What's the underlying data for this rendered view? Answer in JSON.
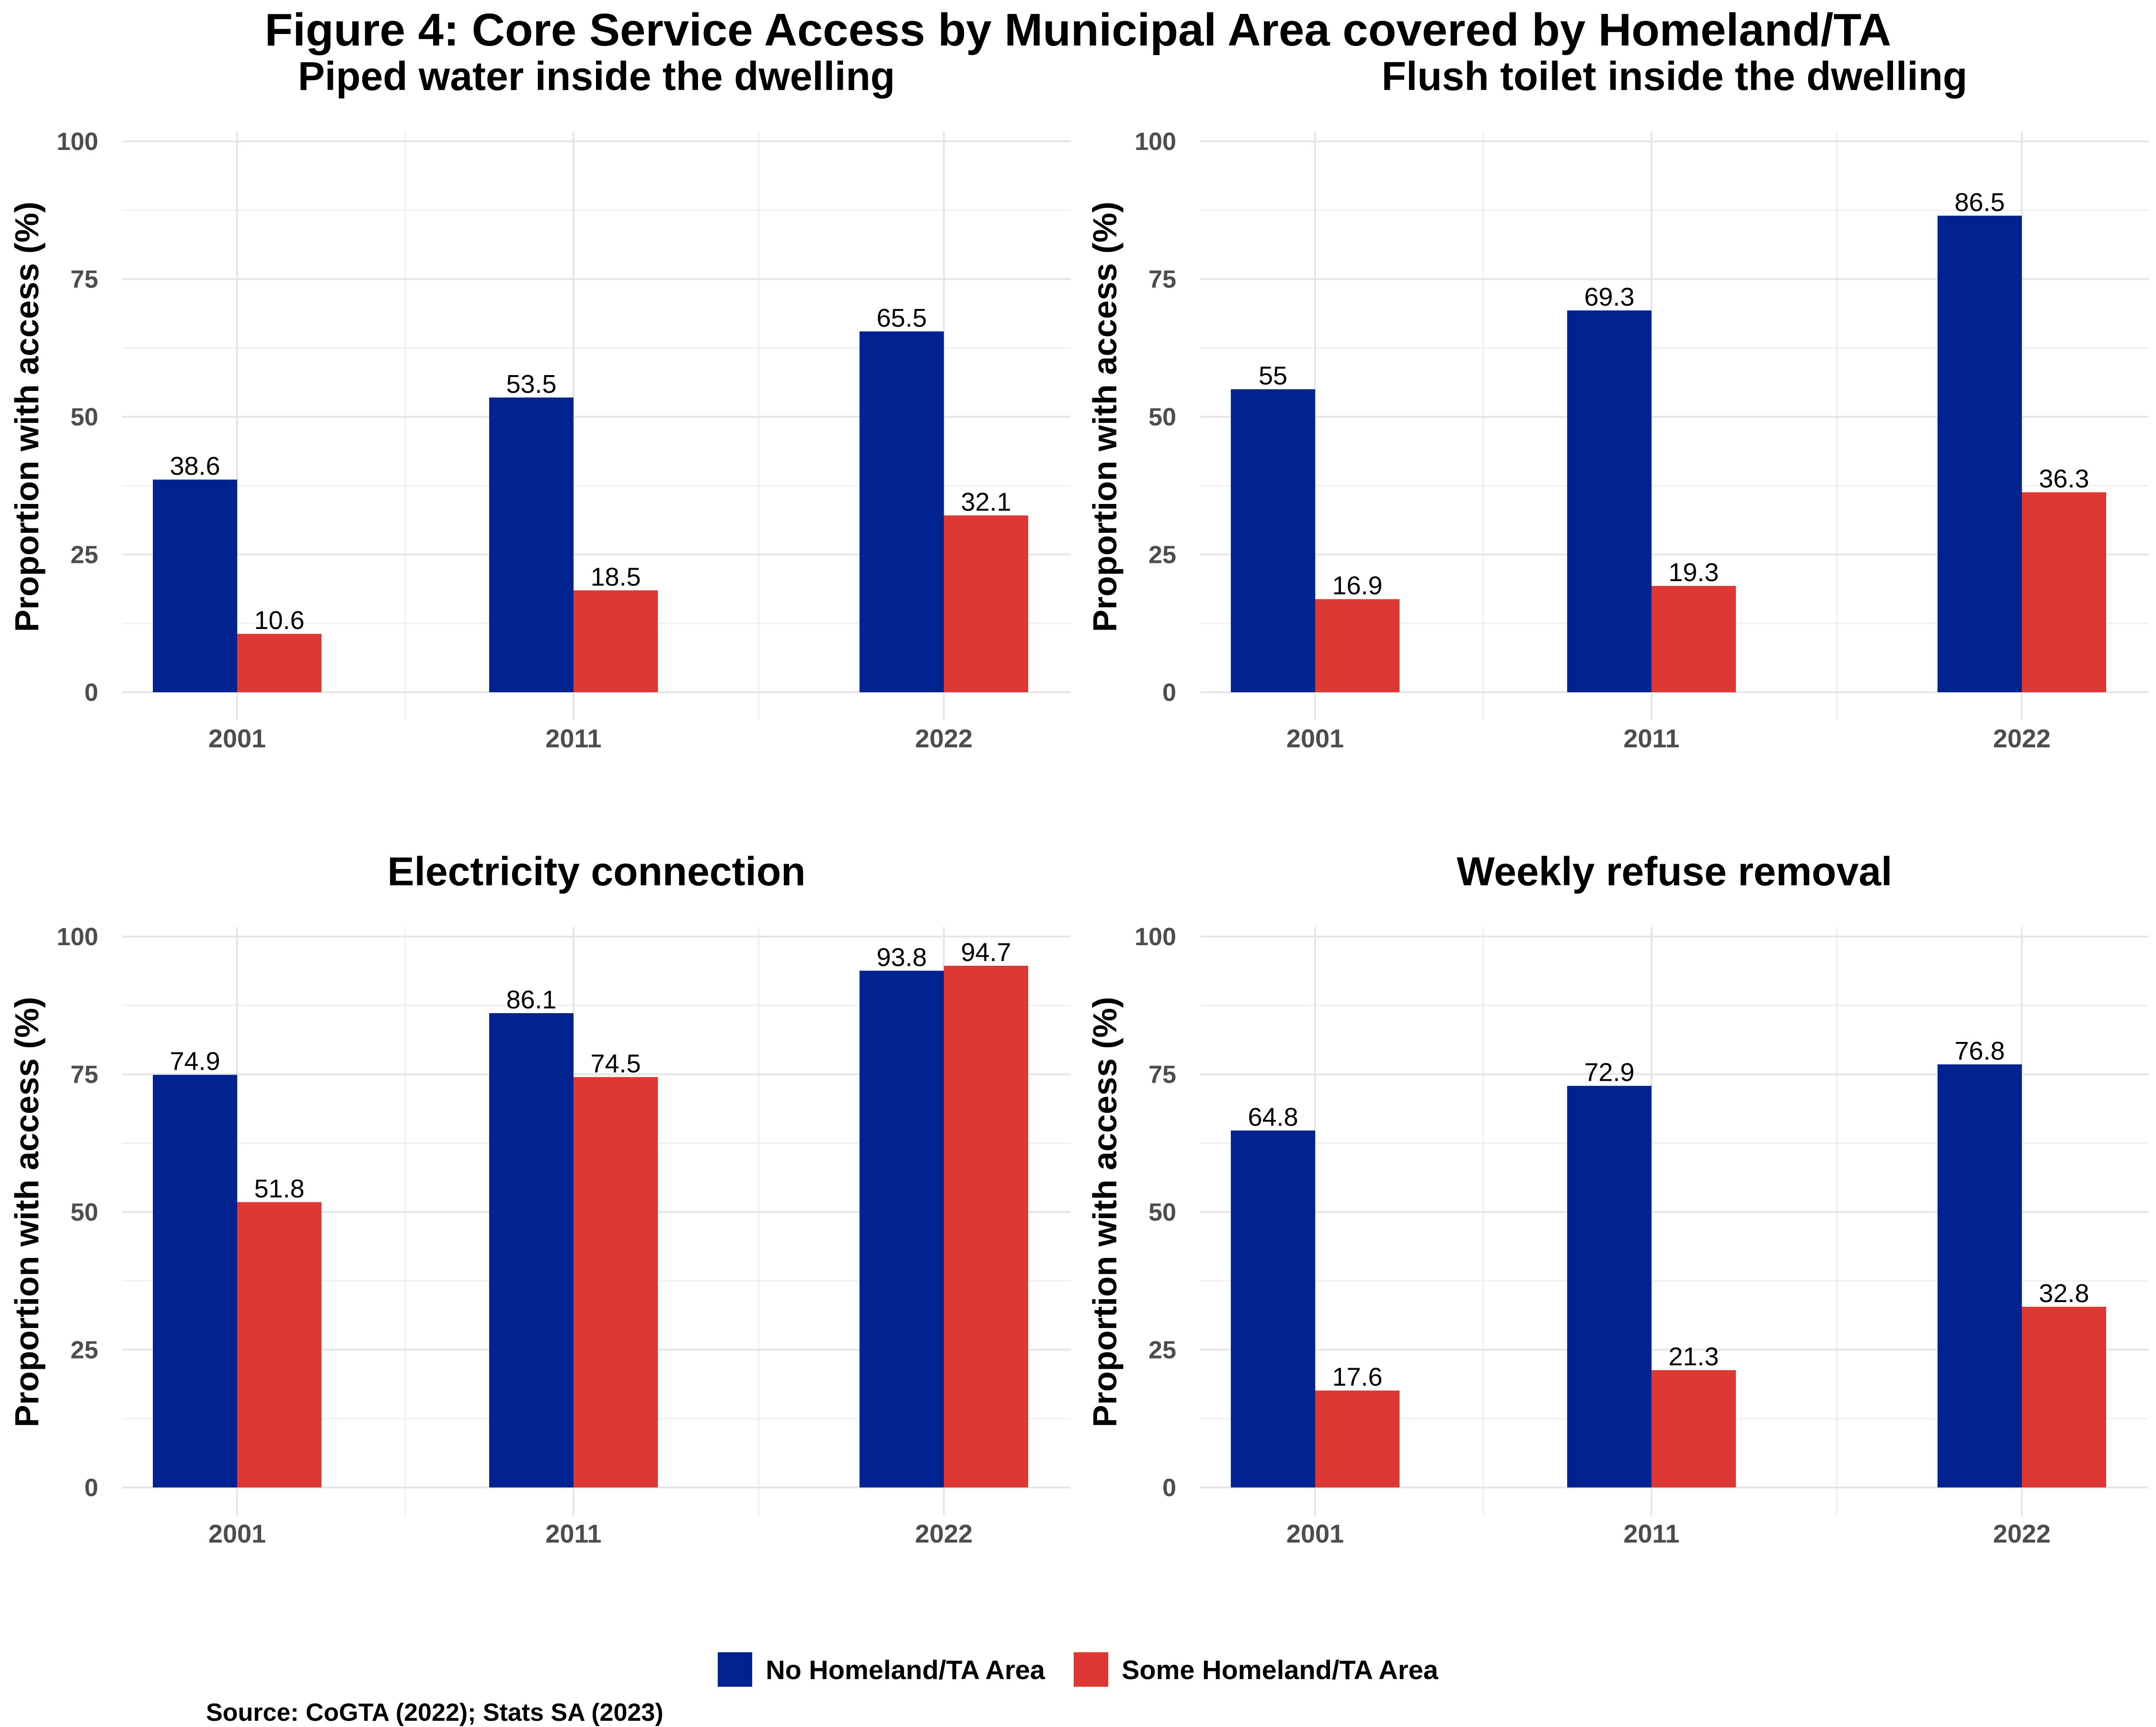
{
  "title": "Figure 4: Core Service Access by Municipal Area covered by Homeland/TA",
  "source": "Source: CoGTA (2022); Stats SA (2023)",
  "colors": {
    "no_homeland": "#00238F",
    "some_homeland": "#DD3833"
  },
  "legend": {
    "items": [
      {
        "label": "No Homeland/TA Area",
        "color": "#00238F"
      },
      {
        "label": "Some Homeland/TA Area",
        "color": "#DD3833"
      }
    ],
    "position": "bottom"
  },
  "chart_data": [
    {
      "type": "bar",
      "title": "Piped water inside the dwelling",
      "ylabel": "Proportion with access (%)",
      "xlabel": "",
      "categories": [
        "2001",
        "2011",
        "2022"
      ],
      "yticks": [
        "0",
        "25",
        "50",
        "75",
        "100"
      ],
      "ylim": [
        0,
        100
      ],
      "grid": true,
      "series": [
        {
          "name": "No Homeland/TA Area",
          "values": [
            38.6,
            53.5,
            65.5
          ],
          "labels": [
            "38.6",
            "53.5",
            "65.5"
          ]
        },
        {
          "name": "Some Homeland/TA Area",
          "values": [
            10.6,
            18.5,
            32.1
          ],
          "labels": [
            "10.6",
            "18.5",
            "32.1"
          ]
        }
      ]
    },
    {
      "type": "bar",
      "title": "Flush toilet inside the dwelling",
      "ylabel": "Proportion with access (%)",
      "xlabel": "",
      "categories": [
        "2001",
        "2011",
        "2022"
      ],
      "yticks": [
        "0",
        "25",
        "50",
        "75",
        "100"
      ],
      "ylim": [
        0,
        100
      ],
      "grid": true,
      "series": [
        {
          "name": "No Homeland/TA Area",
          "values": [
            55,
            69.3,
            86.5
          ],
          "labels": [
            "55",
            "69.3",
            "86.5"
          ]
        },
        {
          "name": "Some Homeland/TA Area",
          "values": [
            16.9,
            19.3,
            36.3
          ],
          "labels": [
            "16.9",
            "19.3",
            "36.3"
          ]
        }
      ]
    },
    {
      "type": "bar",
      "title": "Electricity connection",
      "ylabel": "Proportion with access (%)",
      "xlabel": "",
      "categories": [
        "2001",
        "2011",
        "2022"
      ],
      "yticks": [
        "0",
        "25",
        "50",
        "75",
        "100"
      ],
      "ylim": [
        0,
        100
      ],
      "grid": true,
      "series": [
        {
          "name": "No Homeland/TA Area",
          "values": [
            74.9,
            86.1,
            93.8
          ],
          "labels": [
            "74.9",
            "86.1",
            "93.8"
          ]
        },
        {
          "name": "Some Homeland/TA Area",
          "values": [
            51.8,
            74.5,
            94.7
          ],
          "labels": [
            "51.8",
            "74.5",
            "94.7"
          ]
        }
      ]
    },
    {
      "type": "bar",
      "title": "Weekly refuse removal",
      "ylabel": "Proportion with access (%)",
      "xlabel": "",
      "categories": [
        "2001",
        "2011",
        "2022"
      ],
      "yticks": [
        "0",
        "25",
        "50",
        "75",
        "100"
      ],
      "ylim": [
        0,
        100
      ],
      "grid": true,
      "series": [
        {
          "name": "No Homeland/TA Area",
          "values": [
            64.8,
            72.9,
            76.8
          ],
          "labels": [
            "64.8",
            "72.9",
            "76.8"
          ]
        },
        {
          "name": "Some Homeland/TA Area",
          "values": [
            17.6,
            21.3,
            32.8
          ],
          "labels": [
            "17.6",
            "21.3",
            "32.8"
          ]
        }
      ]
    }
  ]
}
